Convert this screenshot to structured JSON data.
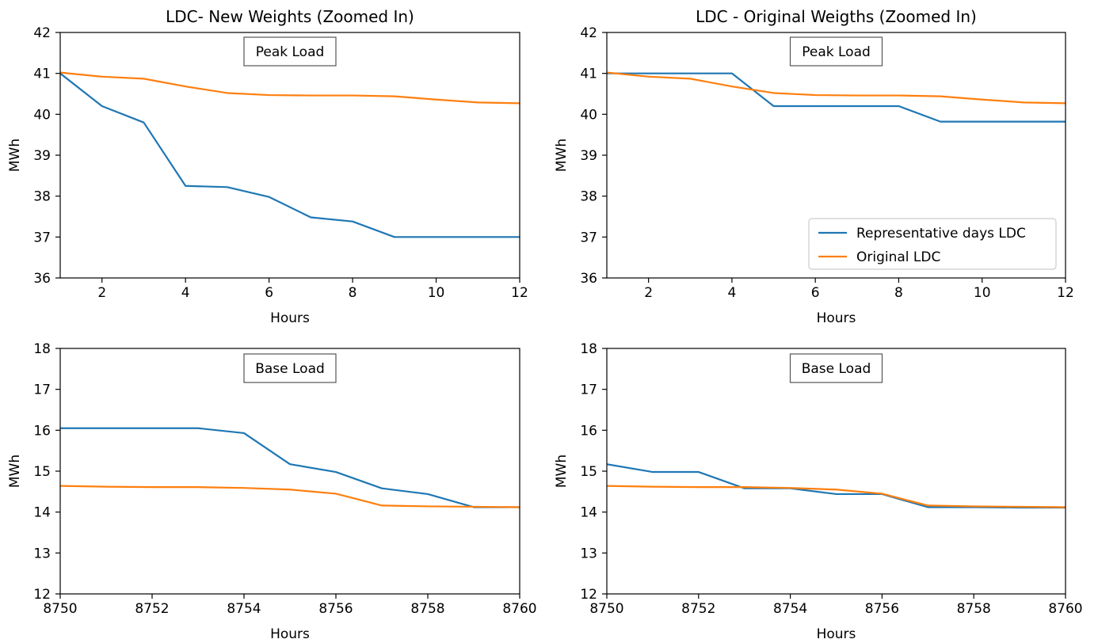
{
  "colors": {
    "representative": "#1f77b4",
    "original": "#ff7f0e",
    "axis": "#000000",
    "background": "#ffffff"
  },
  "chart_data": [
    {
      "type": "line",
      "title": "LDC- New Weights (Zoomed In)",
      "xlabel": "Hours",
      "ylabel": "MWh",
      "annotation": "Peak Load",
      "xlim": [
        1,
        12
      ],
      "ylim": [
        36,
        42
      ],
      "xticks": [
        2,
        4,
        6,
        8,
        10,
        12
      ],
      "yticks": [
        36,
        37,
        38,
        39,
        40,
        41,
        42
      ],
      "legend": null,
      "series": [
        {
          "key": "representative",
          "x": [
            1,
            2,
            3,
            4,
            5,
            6,
            7,
            8,
            9,
            10,
            11,
            12
          ],
          "values": [
            41.0,
            40.2,
            39.8,
            38.25,
            38.22,
            37.98,
            37.48,
            37.38,
            37.0,
            37.0,
            37.0,
            37.0
          ]
        },
        {
          "key": "original",
          "x": [
            1,
            2,
            3,
            4,
            5,
            6,
            7,
            8,
            9,
            10,
            11,
            12
          ],
          "values": [
            41.02,
            40.92,
            40.87,
            40.68,
            40.52,
            40.47,
            40.46,
            40.46,
            40.44,
            40.36,
            40.29,
            40.27
          ]
        }
      ]
    },
    {
      "type": "line",
      "title": "LDC - Original Weigths (Zoomed In)",
      "xlabel": "Hours",
      "ylabel": "MWh",
      "annotation": "Peak Load",
      "xlim": [
        1,
        12
      ],
      "ylim": [
        36,
        42
      ],
      "xticks": [
        2,
        4,
        6,
        8,
        10,
        12
      ],
      "yticks": [
        36,
        37,
        38,
        39,
        40,
        41,
        42
      ],
      "legend": "lower-right",
      "series": [
        {
          "key": "representative",
          "name": "Representative days LDC",
          "x": [
            1,
            2,
            3,
            4,
            5,
            6,
            7,
            8,
            9,
            10,
            11,
            12
          ],
          "values": [
            41.0,
            41.0,
            41.0,
            41.0,
            40.2,
            40.2,
            40.2,
            40.2,
            39.82,
            39.82,
            39.82,
            39.82
          ]
        },
        {
          "key": "original",
          "name": "Original LDC",
          "x": [
            1,
            2,
            3,
            4,
            5,
            6,
            7,
            8,
            9,
            10,
            11,
            12
          ],
          "values": [
            41.02,
            40.92,
            40.87,
            40.68,
            40.52,
            40.47,
            40.46,
            40.46,
            40.44,
            40.36,
            40.29,
            40.27
          ]
        }
      ]
    },
    {
      "type": "line",
      "title": "",
      "xlabel": "Hours",
      "ylabel": "MWh",
      "annotation": "Base Load",
      "xlim": [
        8750,
        8760
      ],
      "ylim": [
        12,
        18
      ],
      "xticks": [
        8750,
        8752,
        8754,
        8756,
        8758,
        8760
      ],
      "yticks": [
        12,
        13,
        14,
        15,
        16,
        17,
        18
      ],
      "legend": null,
      "series": [
        {
          "key": "representative",
          "x": [
            8750,
            8751,
            8752,
            8753,
            8754,
            8755,
            8756,
            8757,
            8758,
            8759,
            8760
          ],
          "values": [
            16.05,
            16.05,
            16.05,
            16.05,
            15.93,
            15.17,
            14.98,
            14.58,
            14.44,
            14.12,
            14.12
          ]
        },
        {
          "key": "original",
          "x": [
            8750,
            8751,
            8752,
            8753,
            8754,
            8755,
            8756,
            8757,
            8758,
            8759,
            8760
          ],
          "values": [
            14.64,
            14.62,
            14.61,
            14.61,
            14.59,
            14.55,
            14.45,
            14.16,
            14.14,
            14.13,
            14.12
          ]
        }
      ]
    },
    {
      "type": "line",
      "title": "",
      "xlabel": "Hours",
      "ylabel": "MWh",
      "annotation": "Base Load",
      "xlim": [
        8750,
        8760
      ],
      "ylim": [
        12,
        18
      ],
      "xticks": [
        8750,
        8752,
        8754,
        8756,
        8758,
        8760
      ],
      "yticks": [
        12,
        13,
        14,
        15,
        16,
        17,
        18
      ],
      "legend": null,
      "series": [
        {
          "key": "representative",
          "x": [
            8750,
            8751,
            8752,
            8753,
            8754,
            8755,
            8756,
            8757,
            8758,
            8759,
            8760
          ],
          "values": [
            15.17,
            14.98,
            14.98,
            14.58,
            14.58,
            14.44,
            14.44,
            14.12,
            14.12,
            14.11,
            14.11
          ]
        },
        {
          "key": "original",
          "x": [
            8750,
            8751,
            8752,
            8753,
            8754,
            8755,
            8756,
            8757,
            8758,
            8759,
            8760
          ],
          "values": [
            14.64,
            14.62,
            14.61,
            14.61,
            14.59,
            14.55,
            14.45,
            14.16,
            14.14,
            14.13,
            14.12
          ]
        }
      ]
    }
  ]
}
